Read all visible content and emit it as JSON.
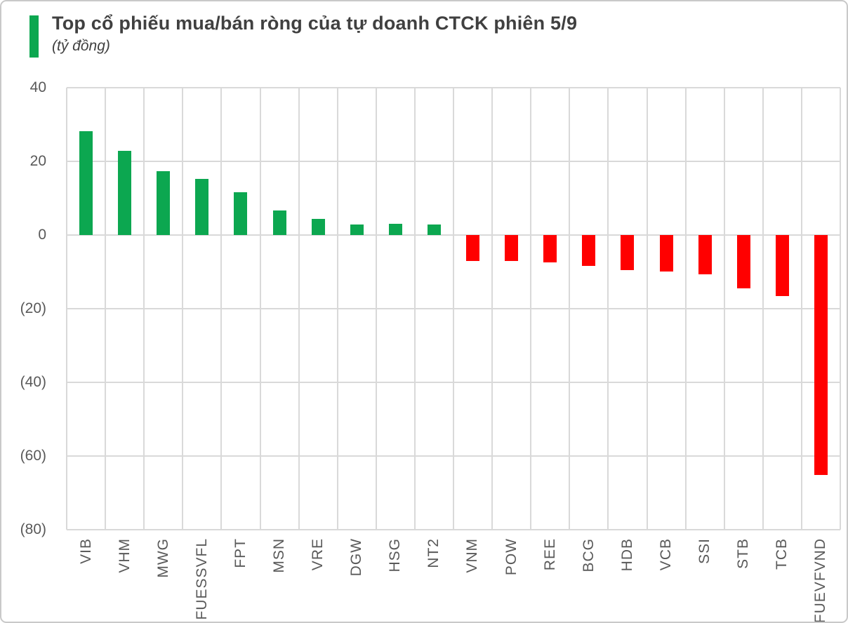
{
  "header": {
    "title": "Top cổ phiếu mua/bán ròng của tự doanh CTCK phiên 5/9",
    "subtitle": "(tỷ đồng)"
  },
  "chart_data": {
    "type": "bar",
    "title": "Top cổ phiếu mua/bán ròng của tự doanh CTCK phiên 5/9",
    "ylabel": "(tỷ đồng)",
    "xlabel": "",
    "categories": [
      "VIB",
      "VHM",
      "MWG",
      "FUESSVFL",
      "FPT",
      "MSN",
      "VRE",
      "DGW",
      "HSG",
      "NT2",
      "VNM",
      "POW",
      "REE",
      "BCG",
      "HDB",
      "VCB",
      "SSI",
      "STB",
      "TCB",
      "FUEVFVND"
    ],
    "values": [
      28.2,
      22.9,
      17.3,
      15.2,
      11.6,
      6.7,
      4.4,
      2.9,
      3.0,
      2.9,
      -7.0,
      -7.0,
      -7.5,
      -8.4,
      -9.5,
      -9.9,
      -10.6,
      -14.5,
      -16.6,
      -65.1
    ],
    "positive_color": "#0CA750",
    "negative_color": "#FF0000",
    "ylim": [
      -80,
      40
    ],
    "y_tick_labels": [
      "40",
      "20",
      "0",
      "(20)",
      "(40)",
      "(60)",
      "(80)"
    ],
    "y_tick_values": [
      40,
      20,
      0,
      -20,
      -40,
      -60,
      -80
    ],
    "grid": true,
    "legend": "none",
    "bar_orientation": "vertical"
  },
  "colors": {
    "accent_green": "#0CA750",
    "bar_red": "#FF0000",
    "gridline": "#D9D9D9",
    "axis_text": "#595959",
    "title_text": "#404040",
    "card_border": "#C9C9C9"
  }
}
